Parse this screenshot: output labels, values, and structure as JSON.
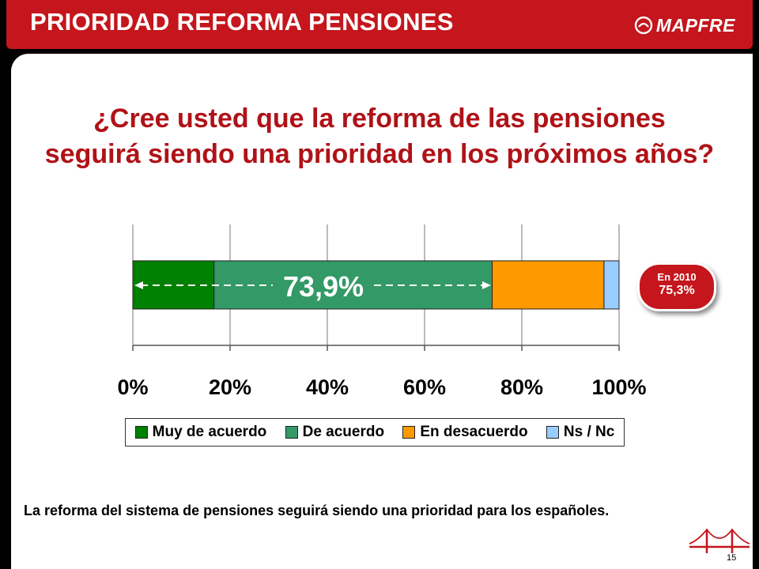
{
  "header": {
    "title": "PRIORIDAD REFORMA PENSIONES",
    "logo_text": "MAPFRE",
    "logo_icon": "mapfre-logo-icon"
  },
  "question": {
    "line1": "¿Cree usted que la reforma de las pensiones",
    "line2": "seguirá siendo una prioridad en los próximos años?"
  },
  "chart_data": {
    "type": "bar",
    "orientation": "horizontal-stacked-100",
    "categories": [
      ""
    ],
    "series": [
      {
        "name": "Muy de acuerdo",
        "values": [
          16.7
        ],
        "color": "#008000"
      },
      {
        "name": "De acuerdo",
        "values": [
          57.2
        ],
        "color": "#339966"
      },
      {
        "name": "En desacuerdo",
        "values": [
          23.0
        ],
        "color": "#ff9900"
      },
      {
        "name": "Ns / Nc",
        "values": [
          3.1
        ],
        "color": "#99ccff"
      }
    ],
    "xlim": [
      0,
      100
    ],
    "xticks": [
      "0%",
      "20%",
      "40%",
      "60%",
      "80%",
      "100%"
    ],
    "grid": true,
    "legend": "bottom",
    "annotation": {
      "text": "73,9%",
      "span": [
        0,
        73.9
      ]
    }
  },
  "badge": {
    "label": "En 2010",
    "value": "75,3%"
  },
  "conclusion": "La reforma del sistema de pensiones seguirá siendo una prioridad para los españoles.",
  "page_number": "15",
  "colors": {
    "brand_red": "#c4161c",
    "question_red": "#b01217"
  }
}
